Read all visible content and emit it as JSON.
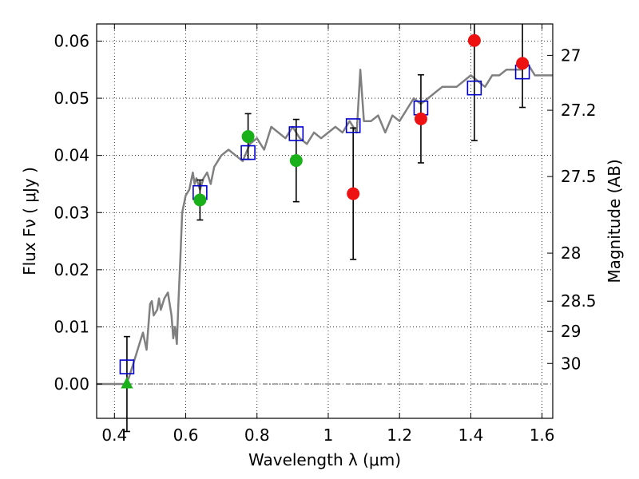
{
  "chart_data": {
    "type": "scatter",
    "xlabel": "Wavelength  λ (μm)",
    "ylabel": "Flux  Fν  ( μJy )",
    "y2label": "Magnitude (AB)",
    "xlim": [
      0.35,
      1.63
    ],
    "ylim": [
      -0.006,
      0.063
    ],
    "grid": true,
    "x_ticks": [
      0.4,
      0.6,
      0.8,
      1.0,
      1.2,
      1.4,
      1.6
    ],
    "x_tick_labels": [
      "0.4",
      "0.6",
      "0.8",
      "1",
      "1.2",
      "1.4",
      "1.6"
    ],
    "y_ticks": [
      0.0,
      0.01,
      0.02,
      0.03,
      0.04,
      0.05,
      0.06
    ],
    "y_tick_labels": [
      "0.00",
      "0.01",
      "0.02",
      "0.03",
      "0.04",
      "0.05",
      "0.06"
    ],
    "y2_ticks": [
      {
        "label": "27",
        "flux": 0.0575
      },
      {
        "label": "27.2",
        "flux": 0.0479
      },
      {
        "label": "27.5",
        "flux": 0.0363
      },
      {
        "label": "28",
        "flux": 0.0229
      },
      {
        "label": "28.5",
        "flux": 0.0145
      },
      {
        "label": "29",
        "flux": 0.0092
      },
      {
        "label": "30",
        "flux": 0.0036
      }
    ],
    "colors": {
      "model": "#808080",
      "model_photometry": "#0000cc",
      "detection_green": "#1ab01a",
      "detection_red": "#ee1111",
      "error_bar": "#000000",
      "zero_line": "#555555"
    },
    "series": [
      {
        "kind": "model_spectrum",
        "x": [
          0.35,
          0.4,
          0.42,
          0.43,
          0.44,
          0.45,
          0.46,
          0.47,
          0.48,
          0.49,
          0.5,
          0.505,
          0.51,
          0.52,
          0.525,
          0.53,
          0.54,
          0.55,
          0.56,
          0.565,
          0.57,
          0.575,
          0.58,
          0.585,
          0.59,
          0.6,
          0.61,
          0.62,
          0.625,
          0.63,
          0.64,
          0.65,
          0.66,
          0.67,
          0.68,
          0.69,
          0.7,
          0.72,
          0.74,
          0.76,
          0.78,
          0.8,
          0.82,
          0.84,
          0.86,
          0.88,
          0.9,
          0.92,
          0.94,
          0.96,
          0.98,
          1.0,
          1.02,
          1.04,
          1.06,
          1.08,
          1.09,
          1.1,
          1.12,
          1.14,
          1.16,
          1.18,
          1.2,
          1.22,
          1.24,
          1.26,
          1.28,
          1.3,
          1.32,
          1.34,
          1.36,
          1.38,
          1.4,
          1.42,
          1.44,
          1.46,
          1.48,
          1.5,
          1.52,
          1.54,
          1.56,
          1.58,
          1.6,
          1.63
        ],
        "y": [
          0.0,
          0.0,
          0.0,
          0.0,
          0.001,
          0.003,
          0.005,
          0.007,
          0.009,
          0.006,
          0.014,
          0.0145,
          0.012,
          0.013,
          0.015,
          0.013,
          0.015,
          0.016,
          0.012,
          0.008,
          0.01,
          0.007,
          0.015,
          0.022,
          0.03,
          0.033,
          0.034,
          0.037,
          0.035,
          0.036,
          0.034,
          0.036,
          0.037,
          0.035,
          0.038,
          0.039,
          0.04,
          0.041,
          0.04,
          0.039,
          0.042,
          0.043,
          0.041,
          0.045,
          0.044,
          0.043,
          0.045,
          0.043,
          0.042,
          0.044,
          0.043,
          0.044,
          0.045,
          0.044,
          0.046,
          0.044,
          0.055,
          0.046,
          0.046,
          0.047,
          0.044,
          0.047,
          0.046,
          0.048,
          0.05,
          0.049,
          0.05,
          0.051,
          0.052,
          0.052,
          0.052,
          0.053,
          0.054,
          0.053,
          0.052,
          0.054,
          0.054,
          0.055,
          0.055,
          0.055,
          0.056,
          0.054,
          0.054,
          0.054
        ]
      },
      {
        "kind": "model_photometry",
        "x": [
          0.435,
          0.64,
          0.775,
          0.91,
          1.07,
          1.26,
          1.41,
          1.545
        ],
        "y": [
          0.003,
          0.0335,
          0.0405,
          0.0438,
          0.0452,
          0.0483,
          0.0518,
          0.0546
        ]
      },
      {
        "kind": "observed",
        "x": [
          0.435,
          0.64,
          0.775,
          0.91,
          1.07,
          1.26,
          1.41,
          1.545
        ],
        "y": [
          0.0,
          0.0322,
          0.0433,
          0.0391,
          0.0333,
          0.0464,
          0.0601,
          0.0561
        ],
        "yerr": [
          0.0083,
          0.0035,
          0.004,
          0.0072,
          0.0115,
          0.0077,
          0.0175,
          0.0077
        ],
        "marker": [
          "triangle",
          "circle",
          "circle",
          "circle",
          "circle",
          "circle",
          "circle",
          "circle"
        ],
        "color": [
          "green",
          "green",
          "green",
          "green",
          "red",
          "red",
          "red",
          "red"
        ]
      }
    ]
  }
}
